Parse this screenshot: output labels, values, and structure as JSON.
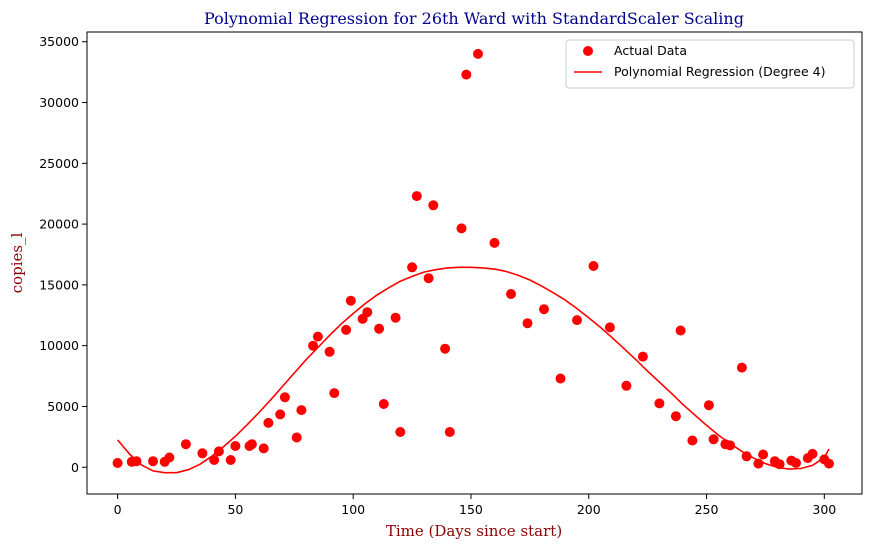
{
  "chart_data": {
    "type": "scatter",
    "title": "Polynomial Regression for 26th Ward with StandardScaler Scaling",
    "xlabel": "Time (Days since start)",
    "ylabel": "copies_l",
    "xlim": [
      -13,
      316
    ],
    "ylim": [
      -2200,
      35800
    ],
    "xticks": [
      0,
      50,
      100,
      150,
      200,
      250,
      300
    ],
    "yticks": [
      0,
      5000,
      10000,
      15000,
      20000,
      25000,
      30000,
      35000
    ],
    "legend_position": "top-right",
    "series": [
      {
        "name": "Actual Data",
        "kind": "scatter",
        "color": "#ff0000",
        "points": [
          [
            0,
            350
          ],
          [
            6,
            450
          ],
          [
            8,
            500
          ],
          [
            15,
            500
          ],
          [
            20,
            450
          ],
          [
            22,
            800
          ],
          [
            29,
            1900
          ],
          [
            36,
            1150
          ],
          [
            41,
            600
          ],
          [
            43,
            1300
          ],
          [
            48,
            600
          ],
          [
            50,
            1750
          ],
          [
            56,
            1750
          ],
          [
            57,
            1900
          ],
          [
            62,
            1550
          ],
          [
            64,
            3650
          ],
          [
            69,
            4350
          ],
          [
            71,
            5750
          ],
          [
            76,
            2450
          ],
          [
            78,
            4700
          ],
          [
            83,
            10000
          ],
          [
            85,
            10750
          ],
          [
            90,
            9500
          ],
          [
            92,
            6100
          ],
          [
            97,
            11300
          ],
          [
            99,
            13700
          ],
          [
            104,
            12200
          ],
          [
            106,
            12750
          ],
          [
            111,
            11400
          ],
          [
            113,
            5200
          ],
          [
            118,
            12300
          ],
          [
            120,
            2900
          ],
          [
            125,
            16450
          ],
          [
            127,
            22300
          ],
          [
            132,
            15550
          ],
          [
            134,
            21550
          ],
          [
            139,
            9750
          ],
          [
            141,
            2900
          ],
          [
            146,
            19650
          ],
          [
            148,
            32300
          ],
          [
            153,
            34000
          ],
          [
            160,
            18450
          ],
          [
            167,
            14250
          ],
          [
            174,
            11850
          ],
          [
            181,
            13000
          ],
          [
            188,
            7300
          ],
          [
            195,
            12100
          ],
          [
            202,
            16550
          ],
          [
            209,
            11500
          ],
          [
            216,
            6700
          ],
          [
            223,
            9100
          ],
          [
            230,
            5250
          ],
          [
            237,
            4200
          ],
          [
            239,
            11250
          ],
          [
            244,
            2200
          ],
          [
            251,
            5100
          ],
          [
            253,
            2300
          ],
          [
            258,
            1900
          ],
          [
            260,
            1800
          ],
          [
            265,
            8200
          ],
          [
            267,
            900
          ],
          [
            272,
            300
          ],
          [
            274,
            1050
          ],
          [
            279,
            500
          ],
          [
            281,
            250
          ],
          [
            286,
            550
          ],
          [
            288,
            350
          ],
          [
            293,
            750
          ],
          [
            295,
            1100
          ],
          [
            300,
            650
          ],
          [
            302,
            300
          ]
        ]
      },
      {
        "name": "Polynomial Regression (Degree 4)",
        "kind": "line",
        "color": "#ff0000",
        "points": [
          [
            0,
            2250
          ],
          [
            5,
            1100
          ],
          [
            10,
            200
          ],
          [
            15,
            -300
          ],
          [
            20,
            -450
          ],
          [
            25,
            -450
          ],
          [
            30,
            -200
          ],
          [
            35,
            250
          ],
          [
            40,
            900
          ],
          [
            45,
            1700
          ],
          [
            50,
            2550
          ],
          [
            55,
            3500
          ],
          [
            60,
            4500
          ],
          [
            65,
            5550
          ],
          [
            70,
            6650
          ],
          [
            75,
            7750
          ],
          [
            80,
            8850
          ],
          [
            85,
            9850
          ],
          [
            90,
            10850
          ],
          [
            95,
            11800
          ],
          [
            100,
            12650
          ],
          [
            105,
            13450
          ],
          [
            110,
            14150
          ],
          [
            115,
            14750
          ],
          [
            120,
            15300
          ],
          [
            125,
            15700
          ],
          [
            130,
            16050
          ],
          [
            135,
            16250
          ],
          [
            140,
            16400
          ],
          [
            145,
            16450
          ],
          [
            150,
            16450
          ],
          [
            155,
            16400
          ],
          [
            160,
            16300
          ],
          [
            165,
            16100
          ],
          [
            170,
            15800
          ],
          [
            175,
            15400
          ],
          [
            180,
            14900
          ],
          [
            185,
            14350
          ],
          [
            190,
            13750
          ],
          [
            195,
            13050
          ],
          [
            200,
            12300
          ],
          [
            205,
            11500
          ],
          [
            210,
            10650
          ],
          [
            215,
            9750
          ],
          [
            220,
            8850
          ],
          [
            225,
            7900
          ],
          [
            230,
            7000
          ],
          [
            235,
            6100
          ],
          [
            240,
            5150
          ],
          [
            245,
            4300
          ],
          [
            250,
            3450
          ],
          [
            255,
            2650
          ],
          [
            260,
            1950
          ],
          [
            265,
            1300
          ],
          [
            270,
            750
          ],
          [
            275,
            300
          ],
          [
            280,
            0
          ],
          [
            285,
            -150
          ],
          [
            290,
            -100
          ],
          [
            295,
            150
          ],
          [
            300,
            800
          ],
          [
            302,
            1500
          ]
        ]
      }
    ]
  }
}
